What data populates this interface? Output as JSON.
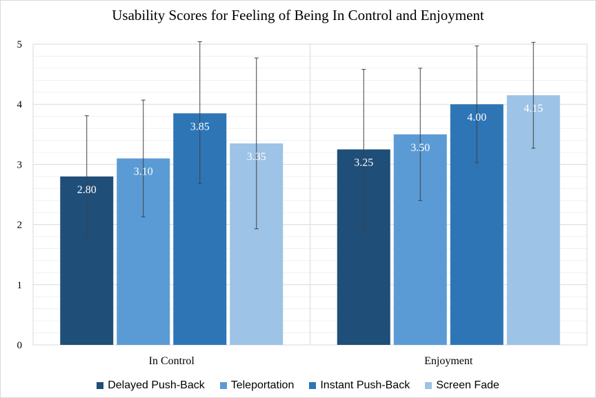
{
  "chart_data": {
    "type": "bar",
    "title": "Usability Scores for Feeling of Being In Control and Enjoyment",
    "categories": [
      "In Control",
      "Enjoyment"
    ],
    "ylim": [
      0,
      5
    ],
    "yticks": [
      0,
      1,
      2,
      3,
      4,
      5
    ],
    "grid": true,
    "legend_position": "bottom",
    "series": [
      {
        "name": "Delayed Push-Back",
        "color": "#1f4e79",
        "values": [
          2.8,
          3.25
        ],
        "labels": [
          "2.80",
          "3.25"
        ],
        "error_low": [
          1.8,
          1.92
        ],
        "error_high": [
          3.81,
          4.58
        ]
      },
      {
        "name": "Teleportation",
        "color": "#5b9bd5",
        "values": [
          3.1,
          3.5
        ],
        "labels": [
          "3.10",
          "3.50"
        ],
        "error_low": [
          2.13,
          2.4
        ],
        "error_high": [
          4.07,
          4.6
        ]
      },
      {
        "name": "Instant Push-Back",
        "color": "#2e75b6",
        "values": [
          3.85,
          4.0
        ],
        "labels": [
          "3.85",
          "4.00"
        ],
        "error_low": [
          2.68,
          3.03
        ],
        "error_high": [
          5.04,
          4.97
        ]
      },
      {
        "name": "Screen Fade",
        "color": "#9dc3e6",
        "values": [
          3.35,
          4.15
        ],
        "labels": [
          "3.35",
          "4.15"
        ],
        "error_low": [
          1.93,
          3.27
        ],
        "error_high": [
          4.77,
          5.03
        ]
      }
    ]
  }
}
